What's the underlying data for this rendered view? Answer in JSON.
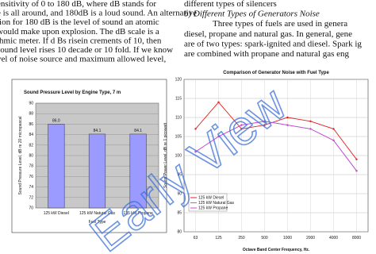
{
  "text": {
    "left_lines": [
      "ensitivity of 0 to 180 dB, where dB stands for",
      "e is all around, and 180dB is a loud sound. An alternative",
      "tion for 180 dB is the level of sound an atomic",
      "would make upon explosion. The dB scale is a",
      "thmic meter. If d Bs risein crements of 10, then",
      "sound level rises 10 decade or 10 fold. If we know",
      "vel of noise source and maximum allowed level,"
    ],
    "right_lines": [
      "different types of silencers",
      "b)   Different Types of Generators Noise",
      "Three types of fuels are used in genera",
      "diesel, propane and natural gas. In general, gene",
      "are of two types: spark-ignited and diesel. Spark ig",
      "are combined with propane and natural gas eng"
    ]
  },
  "watermark": "Early View",
  "chart_data": [
    {
      "type": "bar",
      "title": "Sound Pressure Level by Engine Type, 7 m",
      "x_label": "Fuel Type",
      "y_label": "Sound Pressure Level, dB re 20 micropascal",
      "categories": [
        "125 kW Diesel",
        "125 kW Natural Gas",
        "125 kW Propane"
      ],
      "values": [
        86.0,
        84.1,
        84.1
      ],
      "value_labels": [
        "86.0",
        "84.1",
        "84.1"
      ],
      "color": "#9a9aff",
      "ylim": [
        70,
        90
      ],
      "yticks": [
        70,
        72,
        74,
        76,
        78,
        80,
        82,
        84,
        86,
        88,
        90
      ],
      "grid": true
    },
    {
      "type": "line",
      "title": "Comparison of Generator Noise with Fuel Type",
      "x_label": "Octave Band Center Frequency, Hz.",
      "y_label": "Sound Power Level, dB re 1 picowatt",
      "categories": [
        "63",
        "125",
        "250",
        "500",
        "1000",
        "2000",
        "4000",
        "8000"
      ],
      "series": [
        {
          "name": "125 kW Diesel",
          "color": "#e02020",
          "values": [
            107,
            114,
            107,
            108,
            110,
            109,
            107,
            99
          ]
        },
        {
          "name": "125 kW Natural Gas",
          "color": "#20c060",
          "values": [
            101,
            105,
            108,
            109,
            108,
            107,
            104,
            96
          ]
        },
        {
          "name": "125 kW Propane",
          "color": "#e040e0",
          "values": [
            101,
            105,
            108,
            109,
            108,
            107,
            104,
            96
          ]
        }
      ],
      "ylim": [
        80,
        120
      ],
      "yticks": [
        80,
        85,
        90,
        95,
        100,
        105,
        110,
        115,
        120
      ],
      "grid": true,
      "legend": "lower-left"
    }
  ]
}
